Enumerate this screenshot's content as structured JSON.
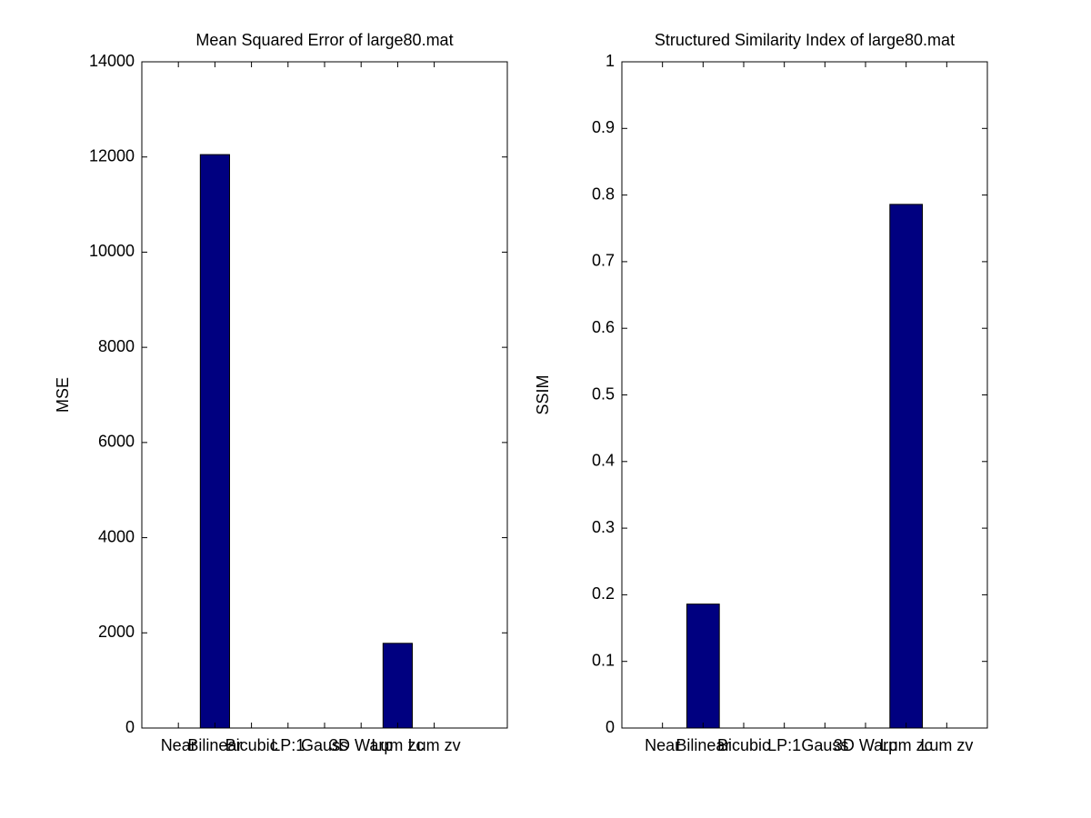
{
  "chart_data": [
    {
      "type": "bar",
      "title": "Mean Squared Error of large80.mat",
      "ylabel": "MSE",
      "categories": [
        "Near",
        "Bilinear",
        "Bicubic",
        "LP:1",
        "Gauss",
        "3D Warp",
        "Lum zc",
        "Lum zv"
      ],
      "values": [
        0,
        12050,
        0,
        0,
        0,
        0,
        1780,
        0
      ],
      "color": "#000080",
      "xlim": [
        0,
        10
      ],
      "ylim": [
        0,
        14000
      ],
      "yticks": [
        0,
        2000,
        4000,
        6000,
        8000,
        10000,
        12000,
        14000
      ]
    },
    {
      "type": "bar",
      "title": "Structured Similarity Index of large80.mat",
      "ylabel": "SSIM",
      "categories": [
        "Near",
        "Bilinear",
        "Bicubic",
        "LP:1",
        "Gauss",
        "3D Warp",
        "Lum zc",
        "Lum zv"
      ],
      "values": [
        0,
        0.186,
        0,
        0,
        0,
        0,
        0.786,
        0
      ],
      "color": "#000080",
      "xlim": [
        0,
        9
      ],
      "ylim": [
        0,
        1
      ],
      "yticks": [
        0,
        0.1,
        0.2,
        0.3,
        0.4,
        0.5,
        0.6,
        0.7,
        0.8,
        0.9,
        1
      ]
    }
  ]
}
